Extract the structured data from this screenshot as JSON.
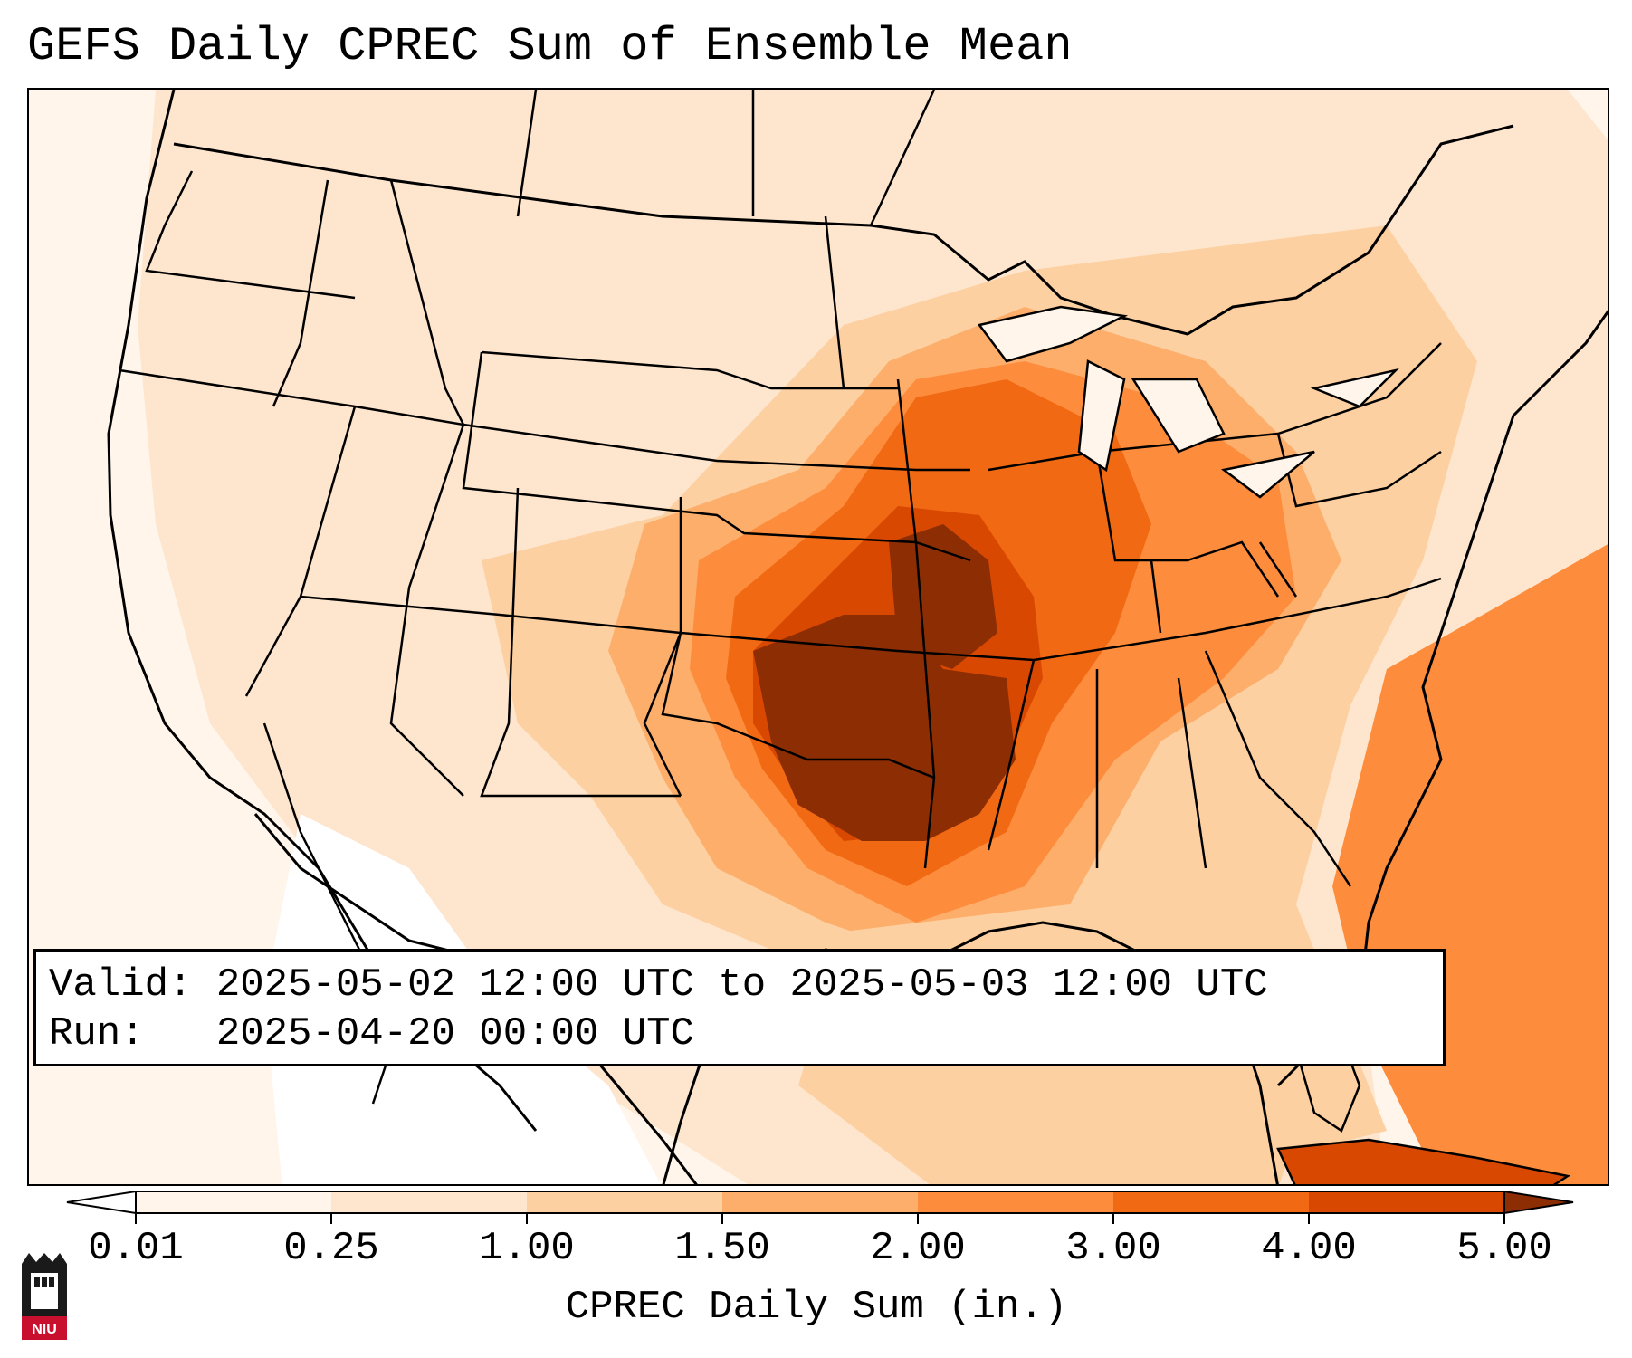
{
  "title": "GEFS Daily CPREC Sum of Ensemble Mean",
  "info": {
    "valid_label": "Valid:",
    "valid_value": "2025-05-02 12:00 UTC to 2025-05-03 12:00 UTC",
    "run_label": "Run:",
    "run_value": "2025-04-20 00:00 UTC"
  },
  "colorbar": {
    "label": "CPREC Daily Sum (in.)",
    "ticks": [
      "0.01",
      "0.25",
      "1.00",
      "1.50",
      "2.00",
      "3.00",
      "4.00",
      "5.00"
    ],
    "colors": [
      "#fff5eb",
      "#fee6ce",
      "#fdd0a2",
      "#fdae6b",
      "#fd8d3c",
      "#f16913",
      "#d94801",
      "#8c2d04"
    ],
    "extend": "both"
  },
  "logo": {
    "text": "NIU",
    "color": "#c8102e"
  },
  "map": {
    "background_color": "#fff5eb",
    "border_color": "#000000",
    "precip_regions": [
      {
        "level": "0.25-1.00",
        "color": "#fee6ce"
      },
      {
        "level": "1.00-1.50",
        "color": "#fdd0a2"
      },
      {
        "level": "1.50-2.00",
        "color": "#fdae6b"
      },
      {
        "level": "2.00-3.00",
        "color": "#fd8d3c"
      },
      {
        "level": "3.00-4.00",
        "color": "#f16913"
      },
      {
        "level": "4.00-5.00",
        "color": "#d94801"
      },
      {
        "level": ">5.00",
        "color": "#8c2d04"
      }
    ]
  }
}
